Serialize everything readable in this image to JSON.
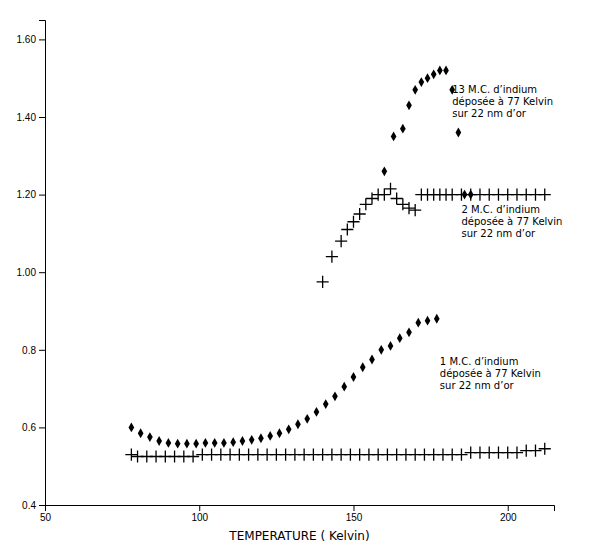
{
  "chart_data": {
    "type": "scatter",
    "xlabel": "TEMPERATURE ( Kelvin)",
    "xlim": [
      50,
      215
    ],
    "ylim": [
      0.4,
      1.65
    ],
    "xticks": [
      50,
      100,
      150,
      200
    ],
    "yticks": [
      0.4,
      0.6,
      0.8,
      {
        "value": 1.0,
        "label": "1.00"
      },
      {
        "value": 1.2,
        "label": "1.20"
      },
      {
        "value": 1.4,
        "label": "1.40"
      },
      {
        "value": 1.6,
        "label": "1.60"
      }
    ],
    "annotations": [
      {
        "text": "13 M.C. d’indium\ndéposée à 77 Kelvin\nsur 22 nm d’or",
        "x": 182,
        "y": 1.48
      },
      {
        "text": "2 M.C. d’indium\ndéposée à 77 Kelvin\nsur 22 nm d’or",
        "x": 185,
        "y": 1.17
      },
      {
        "text": "1 M.C. d’indium\ndéposée à 77 Kelvin\nsur 22 nm d’or",
        "x": 178,
        "y": 0.78
      }
    ],
    "series": [
      {
        "color": "#000000",
        "marker": "plus",
        "x": [
          78,
          80,
          83,
          86,
          89,
          92,
          95,
          98,
          101,
          104,
          107,
          110,
          113,
          116,
          119,
          122,
          125,
          128,
          131,
          134,
          137,
          140,
          143,
          146,
          149,
          152,
          155,
          158,
          161,
          164,
          167,
          170,
          173,
          176,
          179,
          182,
          185,
          188,
          191,
          194,
          197,
          200,
          203,
          206,
          209,
          212
        ],
        "values": [
          0.53,
          0.525,
          0.525,
          0.525,
          0.525,
          0.525,
          0.525,
          0.525,
          0.53,
          0.53,
          0.53,
          0.53,
          0.53,
          0.53,
          0.53,
          0.53,
          0.53,
          0.53,
          0.53,
          0.53,
          0.53,
          0.53,
          0.53,
          0.53,
          0.53,
          0.53,
          0.53,
          0.53,
          0.53,
          0.53,
          0.53,
          0.53,
          0.53,
          0.53,
          0.53,
          0.53,
          0.53,
          0.535,
          0.535,
          0.535,
          0.535,
          0.535,
          0.535,
          0.54,
          0.54,
          0.545
        ]
      },
      {
        "color": "#000000",
        "marker": "diamond",
        "x": [
          78,
          81,
          84,
          87,
          90,
          93,
          96,
          99,
          102,
          105,
          108,
          111,
          114,
          117,
          120,
          123,
          126,
          129,
          132,
          135,
          138,
          141,
          144,
          147,
          150,
          153,
          156,
          159,
          162,
          165,
          168,
          171,
          174,
          177
        ],
        "values": [
          0.6,
          0.585,
          0.575,
          0.565,
          0.56,
          0.558,
          0.558,
          0.558,
          0.56,
          0.56,
          0.56,
          0.562,
          0.565,
          0.568,
          0.572,
          0.578,
          0.585,
          0.595,
          0.608,
          0.622,
          0.64,
          0.66,
          0.68,
          0.705,
          0.73,
          0.755,
          0.775,
          0.8,
          0.81,
          0.83,
          0.845,
          0.87,
          0.875,
          0.88
        ]
      },
      {
        "color": "#000000",
        "marker": "plus",
        "x": [
          140,
          143,
          146,
          148,
          150,
          152,
          154,
          156,
          158,
          160,
          162,
          164,
          166,
          168,
          170,
          172,
          174,
          176,
          178,
          180,
          182,
          185,
          188,
          191,
          194,
          197,
          200,
          203,
          206,
          209,
          212
        ],
        "values": [
          0.975,
          1.04,
          1.08,
          1.11,
          1.13,
          1.15,
          1.175,
          1.19,
          1.2,
          1.2,
          1.215,
          1.19,
          1.175,
          1.165,
          1.16,
          1.2,
          1.2,
          1.2,
          1.2,
          1.2,
          1.2,
          1.2,
          1.2,
          1.2,
          1.2,
          1.2,
          1.2,
          1.2,
          1.2,
          1.2,
          1.2
        ]
      },
      {
        "color": "#000000",
        "marker": "diamond",
        "x": [
          160,
          163,
          166,
          168,
          170,
          172,
          174,
          176,
          178,
          180,
          182,
          184,
          186,
          188
        ],
        "values": [
          1.26,
          1.35,
          1.37,
          1.43,
          1.47,
          1.49,
          1.5,
          1.51,
          1.52,
          1.52,
          1.47,
          1.36,
          1.2,
          1.2
        ]
      }
    ]
  }
}
